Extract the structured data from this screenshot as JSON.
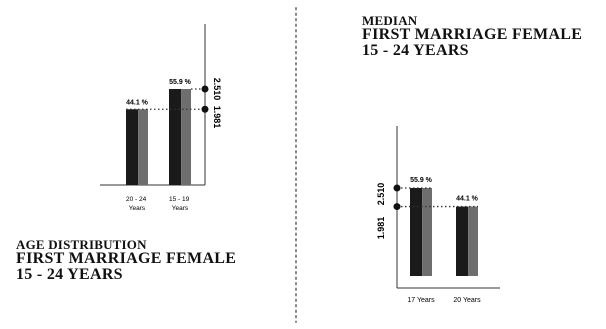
{
  "left_panel": {
    "title_line1": "AGE DISTRIBUTION",
    "title_line2": "FIRST MARRIAGE FEMALE",
    "title_line3": "15 - 24 YEARS"
  },
  "right_panel": {
    "title_line1": "MEDIAN",
    "title_line2": "FIRST MARRIAGE FEMALE",
    "title_line3": "15 - 24 YEARS"
  },
  "colors": {
    "bar_dark": "#1a1a1a",
    "bar_mid": "#3a3a3a",
    "bar_light": "#6e6e6e",
    "axis": "#333333",
    "divider": "#888888"
  },
  "chart_data": [
    {
      "type": "bar",
      "categories": [
        "20 - 24\nYears",
        "15 - 19\nYears"
      ],
      "values": [
        44.1,
        55.9
      ],
      "data_labels": [
        "44.1 %",
        "55.9 %"
      ],
      "reference_values": [
        "2.510",
        "1.981"
      ],
      "title": "AGE DISTRIBUTION FIRST MARRIAGE FEMALE 15 - 24 YEARS"
    },
    {
      "type": "bar",
      "categories": [
        "17 Years",
        "20 Years"
      ],
      "values": [
        55.9,
        44.1
      ],
      "data_labels": [
        "55.9 %",
        "44.1 %"
      ],
      "reference_values": [
        "1.981",
        "2.510"
      ],
      "title": "MEDIAN FIRST MARRIAGE FEMALE 15 - 24 YEARS"
    }
  ]
}
